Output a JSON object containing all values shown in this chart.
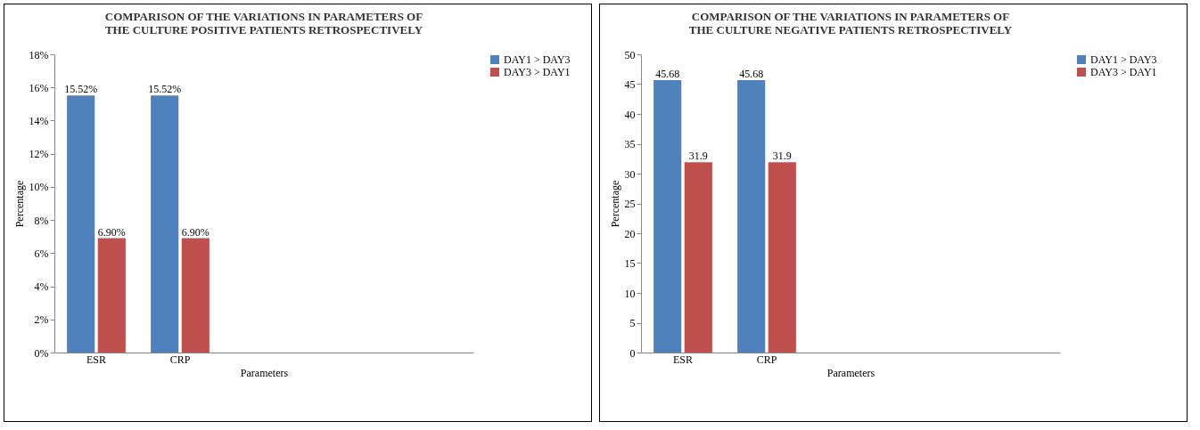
{
  "chart_data": [
    {
      "type": "bar",
      "title": "COMPARISON OF THE VARIATIONS IN PARAMETERS OF THE CULTURE POSITIVE PATIENTS RETROSPECTIVELY",
      "xlabel": "Parameters",
      "ylabel": "Percentage",
      "categories": [
        "ESR",
        "CRP",
        null,
        null,
        null
      ],
      "series": [
        {
          "name": "DAY1 > DAY3",
          "color": "#4f81bd",
          "values": [
            15.52,
            15.52,
            null,
            null,
            null
          ],
          "value_labels": [
            "15.52%",
            "15.52%",
            null,
            null,
            null
          ]
        },
        {
          "name": "DAY3 > DAY1",
          "color": "#c0504d",
          "values": [
            6.9,
            6.9,
            null,
            null,
            null
          ],
          "value_labels": [
            "6.90%",
            "6.90%",
            null,
            null,
            null
          ]
        }
      ],
      "ylim": [
        0,
        18
      ],
      "yticks": [
        {
          "value": 0,
          "label": "0%"
        },
        {
          "value": 2,
          "label": "2%"
        },
        {
          "value": 4,
          "label": "4%"
        },
        {
          "value": 6,
          "label": "6%"
        },
        {
          "value": 8,
          "label": "8%"
        },
        {
          "value": 10,
          "label": "10%"
        },
        {
          "value": 12,
          "label": "12%"
        },
        {
          "value": 14,
          "label": "14%"
        },
        {
          "value": 16,
          "label": "16%"
        },
        {
          "value": 18,
          "label": "18%"
        }
      ],
      "grid": false,
      "legend": "right"
    },
    {
      "type": "bar",
      "title": "COMPARISON OF THE VARIATIONS IN PARAMETERS OF THE CULTURE NEGATIVE PATIENTS RETROSPECTIVELY",
      "xlabel": "Parameters",
      "ylabel": "Percentage",
      "categories": [
        "ESR",
        "CRP",
        null,
        null,
        null
      ],
      "series": [
        {
          "name": "DAY1 > DAY3",
          "color": "#4f81bd",
          "values": [
            45.68,
            45.68,
            null,
            null,
            null
          ]
        },
        {
          "name": "DAY3 > DAY1",
          "color": "#c0504d",
          "values": [
            31.9,
            31.9,
            null,
            null,
            null
          ]
        }
      ],
      "data_labels": true,
      "ylim": [
        0,
        50
      ],
      "yticks": [
        0,
        5,
        10,
        15,
        20,
        25,
        30,
        35,
        40,
        45,
        50
      ],
      "grid": false,
      "legend": "right"
    }
  ]
}
